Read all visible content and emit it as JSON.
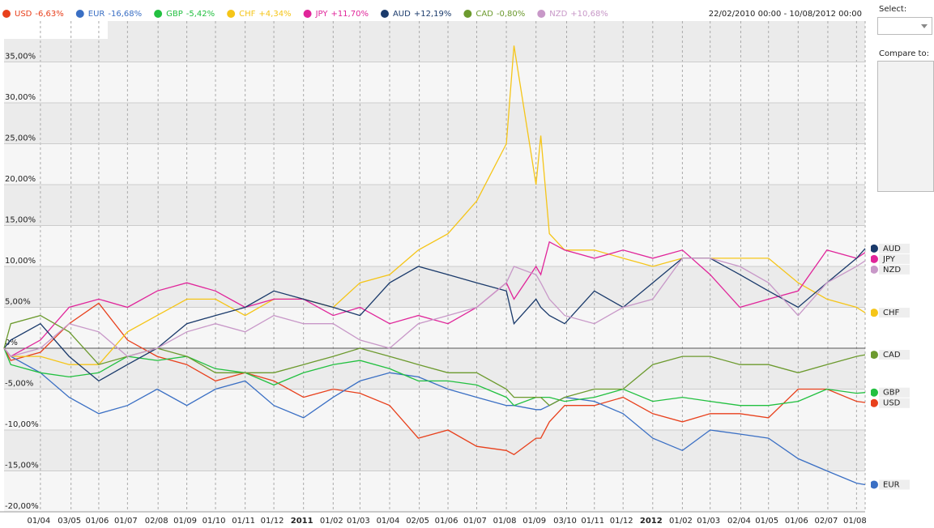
{
  "chart_data": {
    "type": "line",
    "range_label": "22/02/2010 00:00 - 10/08/2012 00:00",
    "select_label": "Select:",
    "compare_label": "Compare to:",
    "x": [
      "2010-02-22",
      "2010-03-01",
      "2010-04-01",
      "2010-05-01",
      "2010-06-01",
      "2010-07-01",
      "2010-08-01",
      "2010-09-01",
      "2010-10-01",
      "2010-11-01",
      "2010-12-01",
      "2011-01-01",
      "2011-02-01",
      "2011-03-01",
      "2011-04-01",
      "2011-05-01",
      "2011-06-01",
      "2011-07-01",
      "2011-08-01",
      "2011-08-09",
      "2011-09-01",
      "2011-09-06",
      "2011-09-15",
      "2011-10-01",
      "2011-11-01",
      "2011-12-01",
      "2012-01-01",
      "2012-02-01",
      "2012-03-01",
      "2012-04-01",
      "2012-05-01",
      "2012-06-01",
      "2012-07-01",
      "2012-08-01",
      "2012-08-10"
    ],
    "xlim": [
      "2010-02-22",
      "2012-08-10"
    ],
    "xticks": [
      {
        "value": "2010-04-01",
        "label": "01/04"
      },
      {
        "value": "2010-05-03",
        "label": "03/05"
      },
      {
        "value": "2010-06-01",
        "label": "01/06"
      },
      {
        "value": "2010-07-01",
        "label": "01/07"
      },
      {
        "value": "2010-08-02",
        "label": "02/08"
      },
      {
        "value": "2010-09-01",
        "label": "01/09"
      },
      {
        "value": "2010-10-01",
        "label": "01/10"
      },
      {
        "value": "2010-11-01",
        "label": "01/11"
      },
      {
        "value": "2010-12-01",
        "label": "01/12"
      },
      {
        "value": "2011-01-01",
        "label": "2011"
      },
      {
        "value": "2011-02-01",
        "label": "01/02"
      },
      {
        "value": "2011-03-01",
        "label": "01/03"
      },
      {
        "value": "2011-04-01",
        "label": "01/04"
      },
      {
        "value": "2011-05-02",
        "label": "02/05"
      },
      {
        "value": "2011-06-01",
        "label": "01/06"
      },
      {
        "value": "2011-07-01",
        "label": "01/07"
      },
      {
        "value": "2011-08-01",
        "label": "01/08"
      },
      {
        "value": "2011-09-01",
        "label": "01/09"
      },
      {
        "value": "2011-10-03",
        "label": "03/10"
      },
      {
        "value": "2011-11-01",
        "label": "01/11"
      },
      {
        "value": "2011-12-01",
        "label": "01/12"
      },
      {
        "value": "2012-01-01",
        "label": "2012"
      },
      {
        "value": "2012-02-01",
        "label": "01/02"
      },
      {
        "value": "2012-03-01",
        "label": "01/03"
      },
      {
        "value": "2012-04-02",
        "label": "02/04"
      },
      {
        "value": "2012-05-01",
        "label": "01/05"
      },
      {
        "value": "2012-06-01",
        "label": "01/06"
      },
      {
        "value": "2012-07-02",
        "label": "02/07"
      },
      {
        "value": "2012-08-01",
        "label": "01/08"
      }
    ],
    "ylim": [
      -20,
      40
    ],
    "yticks": [
      {
        "value": -20,
        "label": "-20,00%"
      },
      {
        "value": -15,
        "label": "-15,00%"
      },
      {
        "value": -10,
        "label": "-10,00%"
      },
      {
        "value": -5,
        "label": "-5,00%"
      },
      {
        "value": 0,
        "label": "0%"
      },
      {
        "value": 5,
        "label": "5,00%"
      },
      {
        "value": 10,
        "label": "10,00%"
      },
      {
        "value": 15,
        "label": "15,00%"
      },
      {
        "value": 20,
        "label": "20,00%"
      },
      {
        "value": 25,
        "label": "25,00%"
      },
      {
        "value": 30,
        "label": "30,00%"
      },
      {
        "value": 35,
        "label": "35,00%"
      }
    ],
    "series": [
      {
        "name": "USD",
        "change_label": "-6,63%",
        "color": "#e8401c",
        "values": [
          0,
          -1.5,
          -0.5,
          3,
          5.5,
          1,
          -1,
          -2,
          -4,
          -3,
          -4,
          -6,
          -5,
          -5.5,
          -7,
          -11,
          -10,
          -12,
          -12.5,
          -13,
          -11,
          -11,
          -9,
          -7,
          -7,
          -6,
          -8,
          -9,
          -8,
          -8,
          -8.5,
          -5,
          -5,
          -6.5,
          -6.63
        ]
      },
      {
        "name": "EUR",
        "change_label": "-16,68%",
        "color": "#3a6fc4",
        "values": [
          0,
          -1,
          -3,
          -6,
          -8,
          -7,
          -5,
          -7,
          -5,
          -4,
          -7,
          -8.5,
          -6,
          -4,
          -3,
          -3.5,
          -5,
          -6,
          -7,
          -7,
          -7.5,
          -7.5,
          -7,
          -6,
          -6.5,
          -8,
          -11,
          -12.5,
          -10,
          -10.5,
          -11,
          -13.5,
          -15,
          -16.5,
          -16.68
        ]
      },
      {
        "name": "GBP",
        "change_label": "-5,42%",
        "color": "#22c040",
        "values": [
          0,
          -2,
          -3,
          -3.5,
          -3,
          -1,
          -1.5,
          -1,
          -2.5,
          -3,
          -4.5,
          -3,
          -2,
          -1.5,
          -2.5,
          -4,
          -4,
          -4.5,
          -6,
          -7,
          -6,
          -6,
          -6,
          -6.5,
          -6,
          -5,
          -6.5,
          -6,
          -6.5,
          -7,
          -7,
          -6.5,
          -5,
          -5.5,
          -5.42
        ]
      },
      {
        "name": "CHF",
        "change_label": "+4,34%",
        "color": "#f5c518",
        "values": [
          0,
          -1,
          -1,
          -2,
          -2,
          2,
          4,
          6,
          6,
          4,
          6,
          6,
          5,
          8,
          9,
          12,
          14,
          18,
          25,
          37,
          20,
          26,
          14,
          12,
          12,
          11,
          10,
          11,
          11,
          11,
          11,
          8,
          6,
          5,
          4.34
        ]
      },
      {
        "name": "JPY",
        "change_label": "+11,70%",
        "color": "#e0259a",
        "values": [
          0,
          -1,
          1,
          5,
          6,
          5,
          7,
          8,
          7,
          5,
          6,
          6,
          4,
          5,
          3,
          4,
          3,
          5,
          8,
          6,
          10,
          9,
          13,
          12,
          11,
          12,
          11,
          12,
          9,
          5,
          6,
          7,
          12,
          11,
          11.7
        ]
      },
      {
        "name": "AUD",
        "change_label": "+12,19%",
        "color": "#1a3a6b",
        "values": [
          0,
          1,
          3,
          -1,
          -4,
          -2,
          0,
          3,
          4,
          5,
          7,
          6,
          5,
          4,
          8,
          10,
          9,
          8,
          7,
          3,
          6,
          5,
          4,
          3,
          7,
          5,
          8,
          11,
          11,
          9,
          7,
          5,
          8,
          11,
          12.19
        ]
      },
      {
        "name": "CAD",
        "change_label": "-0,80%",
        "color": "#6c9a2e",
        "values": [
          0,
          3,
          4,
          2,
          -2,
          -1,
          0,
          -1,
          -3,
          -3,
          -3,
          -2,
          -1,
          0,
          -1,
          -2,
          -3,
          -3,
          -5,
          -6,
          -6,
          -6,
          -7,
          -6,
          -5,
          -5,
          -2,
          -1,
          -1,
          -2,
          -2,
          -3,
          -2,
          -1,
          -0.8
        ]
      },
      {
        "name": "NZD",
        "change_label": "+10,68%",
        "color": "#c898c8",
        "values": [
          0,
          -1,
          0,
          3,
          2,
          -1,
          0,
          2,
          3,
          2,
          4,
          3,
          3,
          1,
          0,
          3,
          4,
          5,
          8,
          10,
          9,
          8,
          6,
          4,
          3,
          5,
          6,
          11,
          11,
          10,
          8,
          4,
          8,
          10,
          10.68
        ]
      }
    ]
  }
}
